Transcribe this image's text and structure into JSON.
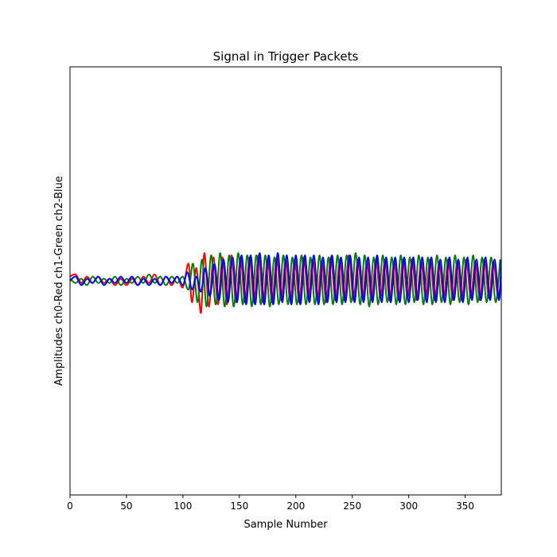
{
  "chart_data": {
    "type": "line",
    "title": "Signal in Trigger Packets",
    "xlabel": "Sample Number",
    "ylabel": "Amplitudes ch0-Red ch1-Green ch2-Blue",
    "xlim": [
      0,
      382
    ],
    "ylim": [
      -1,
      1
    ],
    "y_ticks_shown": false,
    "grid": false,
    "x_ticks": [
      0,
      50,
      100,
      150,
      200,
      250,
      300,
      350
    ],
    "x_tick_labels": [
      "0",
      "50",
      "100",
      "150",
      "200",
      "250",
      "300",
      "350"
    ],
    "series": [
      {
        "channel": "ch0",
        "color": "#ff0000",
        "x": [
          0,
          5,
          10,
          15,
          20,
          25,
          30,
          35,
          40,
          45,
          50,
          55,
          60,
          65,
          70,
          75,
          80,
          85,
          90,
          95,
          100,
          105,
          108,
          112,
          116,
          119,
          123,
          127,
          131,
          135,
          139,
          143,
          147,
          151,
          155,
          159,
          163,
          167,
          171,
          175,
          179,
          183,
          187,
          191,
          195,
          199,
          203,
          207,
          211,
          215,
          219,
          223,
          227,
          231,
          235,
          239,
          243,
          247,
          251,
          255,
          259,
          263,
          267,
          271,
          275,
          279,
          283,
          287,
          291,
          295,
          299,
          303,
          307,
          311,
          315,
          319,
          323,
          327,
          331,
          335,
          339,
          343,
          347,
          351,
          355,
          359,
          363,
          367,
          371,
          375,
          379,
          382
        ],
        "y": [
          0.02,
          0.03,
          -0.01,
          0.02,
          -0.01,
          0.02,
          -0.01,
          0.01,
          -0.02,
          0.01,
          -0.02,
          0.01,
          -0.02,
          0.02,
          -0.01,
          0.03,
          -0.02,
          0.02,
          -0.02,
          0.02,
          -0.03,
          0.08,
          -0.1,
          0.06,
          -0.15,
          0.13,
          -0.12,
          0.11,
          -0.11,
          0.11,
          -0.11,
          0.12,
          -0.1,
          0.11,
          -0.1,
          0.11,
          -0.1,
          0.12,
          -0.1,
          0.1,
          -0.1,
          0.11,
          -0.09,
          0.1,
          -0.09,
          0.1,
          -0.1,
          0.11,
          -0.08,
          0.1,
          -0.09,
          0.09,
          -0.1,
          0.11,
          -0.09,
          0.1,
          -0.09,
          0.12,
          -0.09,
          0.1,
          -0.08,
          0.09,
          -0.09,
          0.1,
          -0.08,
          0.1,
          -0.09,
          0.09,
          -0.09,
          0.1,
          -0.08,
          0.1,
          -0.09,
          0.09,
          -0.08,
          0.1,
          -0.09,
          0.09,
          -0.08,
          0.1,
          -0.09,
          0.09,
          -0.09,
          0.1,
          -0.08,
          0.09,
          -0.09,
          0.1,
          -0.08,
          0.09,
          -0.08,
          0.02
        ]
      },
      {
        "channel": "ch1",
        "color": "#008000",
        "x": [
          0,
          5,
          10,
          15,
          20,
          25,
          30,
          35,
          40,
          45,
          50,
          55,
          60,
          65,
          70,
          75,
          80,
          85,
          90,
          95,
          100,
          105,
          109,
          113,
          117,
          121,
          125,
          129,
          133,
          137,
          141,
          145,
          149,
          153,
          157,
          161,
          165,
          169,
          173,
          177,
          181,
          185,
          189,
          193,
          197,
          201,
          205,
          209,
          213,
          217,
          221,
          225,
          229,
          233,
          237,
          241,
          245,
          249,
          253,
          257,
          261,
          265,
          269,
          273,
          277,
          281,
          285,
          289,
          293,
          297,
          301,
          305,
          309,
          313,
          317,
          321,
          325,
          329,
          333,
          337,
          341,
          345,
          349,
          353,
          357,
          361,
          365,
          369,
          373,
          377,
          381
        ],
        "y": [
          0.01,
          -0.01,
          0.01,
          -0.02,
          0.02,
          -0.01,
          0.01,
          -0.01,
          0.02,
          -0.02,
          0.01,
          -0.01,
          0.02,
          -0.01,
          0.03,
          -0.01,
          0.02,
          -0.02,
          0.02,
          -0.01,
          0.02,
          -0.04,
          0.08,
          -0.1,
          0.1,
          -0.12,
          0.12,
          -0.11,
          0.13,
          -0.12,
          0.12,
          -0.12,
          0.13,
          -0.11,
          0.12,
          -0.12,
          0.12,
          -0.11,
          0.12,
          -0.12,
          0.11,
          -0.11,
          0.12,
          -0.11,
          0.11,
          -0.11,
          0.12,
          -0.11,
          0.11,
          -0.11,
          0.12,
          -0.11,
          0.11,
          -0.11,
          0.12,
          -0.11,
          0.12,
          -0.1,
          0.13,
          -0.11,
          0.12,
          -0.12,
          0.11,
          -0.11,
          0.12,
          -0.1,
          0.11,
          -0.11,
          0.12,
          -0.11,
          0.11,
          -0.1,
          0.12,
          -0.11,
          0.11,
          -0.11,
          0.12,
          -0.1,
          0.11,
          -0.11,
          0.12,
          -0.1,
          0.11,
          -0.11,
          0.12,
          -0.1,
          0.11,
          -0.1,
          0.11,
          -0.1,
          0.1
        ]
      },
      {
        "channel": "ch2",
        "color": "#0000ff",
        "x": [
          0,
          5,
          10,
          15,
          20,
          25,
          30,
          35,
          40,
          45,
          50,
          55,
          60,
          65,
          70,
          75,
          80,
          85,
          90,
          95,
          100,
          104,
          108,
          112,
          116,
          120,
          124,
          128,
          132,
          136,
          140,
          144,
          148,
          152,
          156,
          160,
          164,
          168,
          172,
          176,
          180,
          184,
          188,
          192,
          196,
          200,
          204,
          208,
          212,
          216,
          220,
          224,
          228,
          232,
          236,
          240,
          244,
          248,
          252,
          256,
          260,
          264,
          268,
          272,
          276,
          280,
          284,
          288,
          292,
          296,
          300,
          304,
          308,
          312,
          316,
          320,
          324,
          328,
          332,
          336,
          340,
          344,
          348,
          352,
          356,
          360,
          364,
          368,
          372,
          376,
          380,
          382
        ],
        "y": [
          0.0,
          0.02,
          -0.02,
          0.01,
          -0.01,
          0.02,
          -0.02,
          0.01,
          -0.01,
          0.02,
          -0.01,
          0.02,
          -0.02,
          0.01,
          -0.02,
          0.01,
          -0.02,
          0.02,
          -0.01,
          0.02,
          -0.02,
          0.04,
          -0.04,
          0.02,
          -0.05,
          0.06,
          -0.07,
          0.08,
          -0.09,
          0.1,
          -0.1,
          0.11,
          -0.1,
          0.12,
          -0.11,
          0.12,
          -0.11,
          0.13,
          -0.11,
          0.12,
          -0.11,
          0.13,
          -0.1,
          0.12,
          -0.11,
          0.12,
          -0.11,
          0.12,
          -0.1,
          0.12,
          -0.11,
          0.11,
          -0.1,
          0.12,
          -0.1,
          0.11,
          -0.1,
          0.12,
          -0.1,
          0.11,
          -0.1,
          0.11,
          -0.1,
          0.12,
          -0.1,
          0.11,
          -0.1,
          0.11,
          -0.1,
          0.11,
          -0.1,
          0.11,
          -0.09,
          0.11,
          -0.1,
          0.11,
          -0.1,
          0.1,
          -0.1,
          0.11,
          -0.09,
          0.1,
          -0.1,
          0.11,
          -0.09,
          0.1,
          -0.09,
          0.11,
          -0.09,
          0.1,
          -0.09,
          0.1
        ]
      }
    ]
  }
}
